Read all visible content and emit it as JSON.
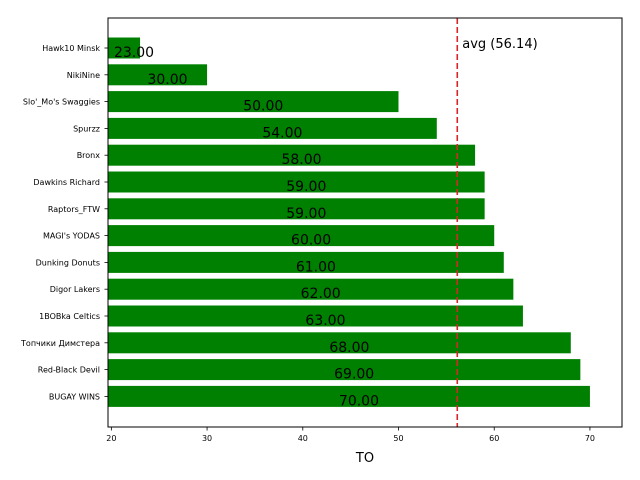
{
  "chart_data": {
    "type": "bar",
    "orientation": "horizontal",
    "categories": [
      "Hawk10 Minsk",
      "NikiNine",
      "Slo'_Mo's Swaggies",
      "Spurzz",
      "Bronx",
      "Dawkins Richard",
      "Raptors_FTW",
      "MAGI's YODAS",
      "Dunking Donuts",
      "Digor Lakers",
      "1BOBka Celtics",
      "Топчики Димстера",
      "Red-Black Devil",
      "BUGAY WINS"
    ],
    "values": [
      23,
      30,
      50,
      54,
      58,
      59,
      59,
      60,
      61,
      62,
      63,
      68,
      69,
      70
    ],
    "value_labels": [
      "23.00",
      "30.00",
      "50.00",
      "54.00",
      "58.00",
      "59.00",
      "59.00",
      "60.00",
      "61.00",
      "62.00",
      "63.00",
      "68.00",
      "69.00",
      "70.00"
    ],
    "bar_color": "#008000",
    "xlabel": "TO",
    "xlim": [
      19.65,
      73.35
    ],
    "xticks": [
      20,
      30,
      40,
      50,
      60,
      70
    ],
    "xtick_labels": [
      "20",
      "30",
      "40",
      "50",
      "60",
      "70"
    ],
    "average": {
      "value": 56.14,
      "label": "avg (56.14)",
      "color": "#d62728",
      "style": "dashed"
    },
    "grid": false,
    "legend": "none"
  }
}
